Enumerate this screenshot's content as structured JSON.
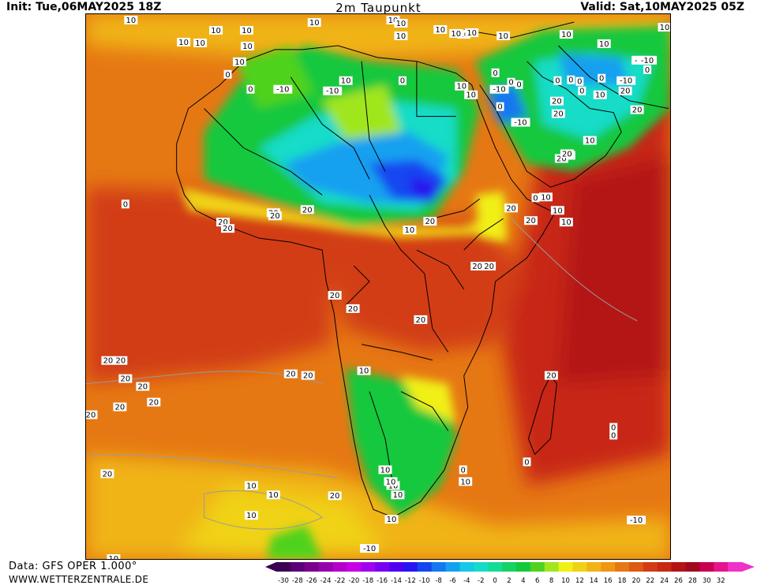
{
  "header": {
    "init": "Init: Tue,06MAY2025 18Z",
    "title": "2m Taupunkt",
    "valid": "Valid: Sat,10MAY2025 05Z"
  },
  "footer": {
    "data_source": "Data: GFS OPER 1.000°",
    "website": "WWW.WETTERZENTRALE.DE"
  },
  "colorbar": {
    "ticks": [
      "-30",
      "-28",
      "-26",
      "-24",
      "-22",
      "-20",
      "-18",
      "-16",
      "-14",
      "-12",
      "-10",
      "-8",
      "-6",
      "-4",
      "-2",
      "0",
      "2",
      "4",
      "6",
      "8",
      "10",
      "12",
      "14",
      "16",
      "18",
      "20",
      "22",
      "24",
      "26",
      "28",
      "30",
      "32"
    ],
    "colors": [
      "#3c0050",
      "#5a0078",
      "#78008c",
      "#9600aa",
      "#b400c8",
      "#c800e6",
      "#a000f0",
      "#7800f0",
      "#5000f0",
      "#2814f0",
      "#1446f0",
      "#1478f0",
      "#14a0f0",
      "#14c8e6",
      "#14dcc8",
      "#14dc96",
      "#14d264",
      "#14c83c",
      "#50d21e",
      "#a0e61e",
      "#f0f014",
      "#f0d214",
      "#f0b414",
      "#f09614",
      "#e67814",
      "#dc5a14",
      "#d23c14",
      "#c82814",
      "#b41414",
      "#a00a1e",
      "#c80050",
      "#e6148c",
      "#f032c8"
    ],
    "under_color": "#3c0050",
    "over_color": "#f032c8"
  },
  "contour_labels": [
    {
      "text": "10"
    },
    {
      "text": "10"
    },
    {
      "text": "10"
    },
    {
      "text": "10"
    },
    {
      "text": "10"
    },
    {
      "text": "10"
    },
    {
      "text": "10"
    },
    {
      "text": "10"
    },
    {
      "text": "10"
    },
    {
      "text": "10"
    },
    {
      "text": "10"
    },
    {
      "text": "10"
    },
    {
      "text": "10"
    },
    {
      "text": "10"
    },
    {
      "text": "10"
    },
    {
      "text": "10"
    },
    {
      "text": "10"
    },
    {
      "text": "10"
    },
    {
      "text": "-10"
    },
    {
      "text": "-10"
    },
    {
      "text": "0"
    },
    {
      "text": "0"
    },
    {
      "text": "0"
    },
    {
      "text": "10"
    },
    {
      "text": "10"
    },
    {
      "text": "10"
    },
    {
      "text": "0"
    },
    {
      "text": "0"
    },
    {
      "text": "-10"
    },
    {
      "text": "0"
    },
    {
      "text": "0"
    },
    {
      "text": "-10"
    },
    {
      "text": "0"
    },
    {
      "text": "0"
    },
    {
      "text": "20"
    },
    {
      "text": "20"
    },
    {
      "text": "-10"
    },
    {
      "text": "0"
    },
    {
      "text": "-10"
    },
    {
      "text": "10"
    },
    {
      "text": "0"
    },
    {
      "text": "0"
    },
    {
      "text": "0"
    },
    {
      "text": "-10"
    },
    {
      "text": "10"
    },
    {
      "text": "20"
    },
    {
      "text": "20"
    },
    {
      "text": "10"
    },
    {
      "text": "10"
    },
    {
      "text": "10"
    },
    {
      "text": "0"
    },
    {
      "text": "20"
    },
    {
      "text": "10"
    },
    {
      "text": "10"
    },
    {
      "text": "20"
    },
    {
      "text": "20"
    },
    {
      "text": "20"
    },
    {
      "text": "0"
    },
    {
      "text": "20"
    },
    {
      "text": "20"
    },
    {
      "text": "20"
    },
    {
      "text": "20"
    },
    {
      "text": "20"
    },
    {
      "text": "20"
    },
    {
      "text": "10"
    },
    {
      "text": "20"
    },
    {
      "text": "20"
    },
    {
      "text": "20"
    },
    {
      "text": "20"
    },
    {
      "text": "20"
    },
    {
      "text": "20"
    },
    {
      "text": "20"
    },
    {
      "text": "20"
    },
    {
      "text": "20"
    },
    {
      "text": "20"
    },
    {
      "text": "20"
    },
    {
      "text": "20"
    },
    {
      "text": "20"
    },
    {
      "text": "20"
    },
    {
      "text": "20"
    },
    {
      "text": "20"
    },
    {
      "text": "0"
    },
    {
      "text": "0"
    },
    {
      "text": "0"
    },
    {
      "text": "0"
    },
    {
      "text": "10"
    },
    {
      "text": "10"
    },
    {
      "text": "10"
    },
    {
      "text": "10"
    },
    {
      "text": "10"
    },
    {
      "text": "10"
    },
    {
      "text": "10"
    },
    {
      "text": "10"
    },
    {
      "text": "20"
    },
    {
      "text": "10"
    },
    {
      "text": "10"
    },
    {
      "text": "-10"
    },
    {
      "text": "-10"
    },
    {
      "text": "10"
    }
  ]
}
